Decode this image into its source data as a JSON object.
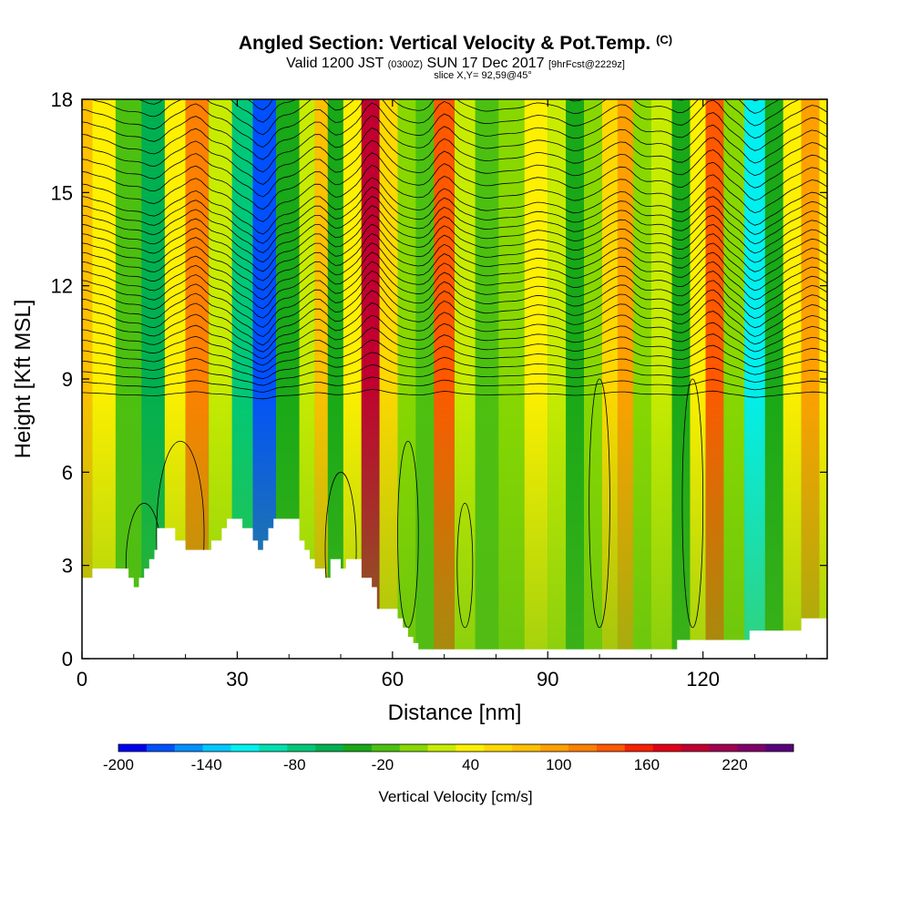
{
  "header": {
    "title": "Angled Section: Vertical Velocity & Pot.Temp.",
    "title_unit": "(C)",
    "valid_prefix": "Valid 1200 JST",
    "valid_zulu": "(0300Z)",
    "valid_date": "SUN 17 Dec 2017",
    "forecast": "[9hrFcst@2229z]",
    "slice": "slice X,Y= 92,59@45°"
  },
  "chart_data": {
    "type": "heatmap",
    "xlabel": "Distance [nm]",
    "ylabel": "Height [Kft MSL]",
    "xlim": [
      0,
      144
    ],
    "ylim": [
      0,
      18
    ],
    "x_ticks": [
      "0",
      "30",
      "60",
      "90",
      "120"
    ],
    "y_ticks": [
      "0",
      "3",
      "6",
      "9",
      "12",
      "15",
      "18"
    ],
    "colorbar": {
      "label": "Vertical Velocity [cm/s]",
      "tick_labels": [
        "-200",
        "-140",
        "-80",
        "-20",
        "40",
        "100",
        "160",
        "220"
      ],
      "levels": [
        -200,
        -180,
        -160,
        -140,
        -120,
        -100,
        -80,
        -60,
        -40,
        -20,
        0,
        20,
        40,
        60,
        80,
        100,
        120,
        140,
        160,
        180,
        200,
        220,
        240,
        260
      ],
      "colors": [
        "#0000f0",
        "#0050ff",
        "#0090ff",
        "#00c8ff",
        "#00f0f0",
        "#00e0b0",
        "#00c878",
        "#00b050",
        "#18a818",
        "#4cc010",
        "#88d800",
        "#c8ec00",
        "#fff000",
        "#ffd800",
        "#ffc000",
        "#ffa000",
        "#ff8000",
        "#ff5800",
        "#f82000",
        "#e00018",
        "#c00030",
        "#a00050",
        "#800068",
        "#58007c"
      ]
    },
    "velocity_bands": [
      {
        "x": 0,
        "v": 80
      },
      {
        "x": 4,
        "v": 40
      },
      {
        "x": 9,
        "v": -20
      },
      {
        "x": 14,
        "v": -60
      },
      {
        "x": 18,
        "v": 40
      },
      {
        "x": 22,
        "v": 120
      },
      {
        "x": 27,
        "v": 20
      },
      {
        "x": 31,
        "v": -80
      },
      {
        "x": 35,
        "v": -180
      },
      {
        "x": 40,
        "v": -40
      },
      {
        "x": 44,
        "v": 20
      },
      {
        "x": 46,
        "v": 80
      },
      {
        "x": 49,
        "v": -40
      },
      {
        "x": 52,
        "v": 40
      },
      {
        "x": 56,
        "v": 200
      },
      {
        "x": 59,
        "v": 60
      },
      {
        "x": 63,
        "v": 0
      },
      {
        "x": 66,
        "v": -20
      },
      {
        "x": 70,
        "v": 140
      },
      {
        "x": 74,
        "v": 20
      },
      {
        "x": 78,
        "v": -20
      },
      {
        "x": 83,
        "v": 0
      },
      {
        "x": 88,
        "v": 40
      },
      {
        "x": 92,
        "v": 20
      },
      {
        "x": 95,
        "v": -40
      },
      {
        "x": 99,
        "v": 0
      },
      {
        "x": 102,
        "v": 60
      },
      {
        "x": 105,
        "v": 100
      },
      {
        "x": 108,
        "v": 0
      },
      {
        "x": 112,
        "v": 20
      },
      {
        "x": 116,
        "v": -40
      },
      {
        "x": 119,
        "v": 40
      },
      {
        "x": 122,
        "v": 140
      },
      {
        "x": 126,
        "v": 0
      },
      {
        "x": 130,
        "v": -120
      },
      {
        "x": 134,
        "v": -40
      },
      {
        "x": 137,
        "v": 40
      },
      {
        "x": 141,
        "v": 100
      },
      {
        "x": 144,
        "v": 40
      }
    ],
    "terrain": [
      {
        "x": 0,
        "h": 2.6
      },
      {
        "x": 2,
        "h": 2.9
      },
      {
        "x": 7,
        "h": 2.9
      },
      {
        "x": 9,
        "h": 2.6
      },
      {
        "x": 10,
        "h": 2.3
      },
      {
        "x": 11,
        "h": 2.6
      },
      {
        "x": 12,
        "h": 2.9
      },
      {
        "x": 13,
        "h": 3.2
      },
      {
        "x": 14,
        "h": 3.5
      },
      {
        "x": 14.5,
        "h": 4.2
      },
      {
        "x": 17,
        "h": 4.2
      },
      {
        "x": 18,
        "h": 3.8
      },
      {
        "x": 19,
        "h": 3.8
      },
      {
        "x": 20,
        "h": 3.5
      },
      {
        "x": 24,
        "h": 3.5
      },
      {
        "x": 25,
        "h": 3.8
      },
      {
        "x": 27,
        "h": 4.2
      },
      {
        "x": 28,
        "h": 4.5
      },
      {
        "x": 30,
        "h": 4.5
      },
      {
        "x": 31,
        "h": 4.2
      },
      {
        "x": 33,
        "h": 3.8
      },
      {
        "x": 34,
        "h": 3.5
      },
      {
        "x": 35,
        "h": 3.8
      },
      {
        "x": 36,
        "h": 4.2
      },
      {
        "x": 37,
        "h": 4.5
      },
      {
        "x": 40,
        "h": 4.5
      },
      {
        "x": 42,
        "h": 3.8
      },
      {
        "x": 43,
        "h": 3.5
      },
      {
        "x": 44,
        "h": 3.2
      },
      {
        "x": 45,
        "h": 2.9
      },
      {
        "x": 46,
        "h": 2.9
      },
      {
        "x": 47,
        "h": 2.6
      },
      {
        "x": 48,
        "h": 3.2
      },
      {
        "x": 50,
        "h": 2.9
      },
      {
        "x": 51,
        "h": 3.2
      },
      {
        "x": 53,
        "h": 3.2
      },
      {
        "x": 54,
        "h": 2.6
      },
      {
        "x": 56,
        "h": 2.3
      },
      {
        "x": 57,
        "h": 1.6
      },
      {
        "x": 60,
        "h": 1.6
      },
      {
        "x": 61,
        "h": 1.3
      },
      {
        "x": 62,
        "h": 1.0
      },
      {
        "x": 63,
        "h": 0.7
      },
      {
        "x": 64,
        "h": 0.5
      },
      {
        "x": 65,
        "h": 0.3
      },
      {
        "x": 114,
        "h": 0.3
      },
      {
        "x": 115,
        "h": 0.6
      },
      {
        "x": 120,
        "h": 0.6
      },
      {
        "x": 124,
        "h": 0.6
      },
      {
        "x": 128,
        "h": 0.6
      },
      {
        "x": 129,
        "h": 0.9
      },
      {
        "x": 138,
        "h": 0.9
      },
      {
        "x": 139,
        "h": 1.3
      },
      {
        "x": 144,
        "h": 1.3
      }
    ]
  }
}
